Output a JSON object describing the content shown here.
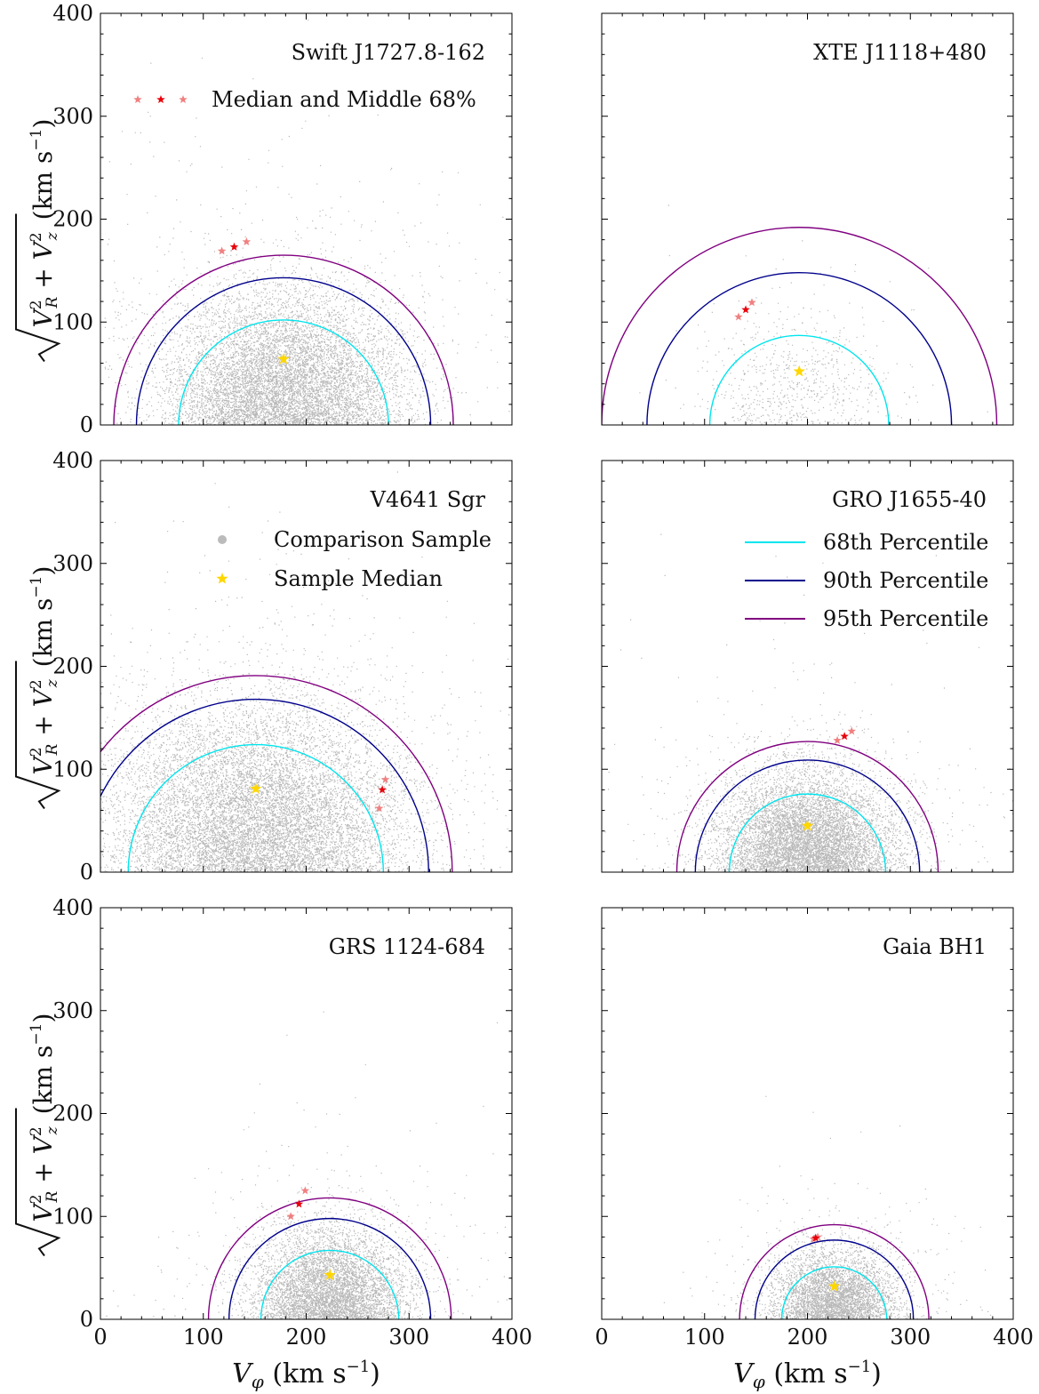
{
  "figure": {
    "xlabel_main": "V",
    "xlabel_sub": "φ",
    "xlabel_unit": " (km s",
    "xlabel_exp": "−1",
    "xlabel_close": ")",
    "ylabel_text": "V²R + V²z (km s⁻¹)",
    "ylabel_unit": "(km s",
    "ylabel_exp": "−1",
    "ylabel_close": ")"
  },
  "legend_stars": {
    "label": "Median and Middle 68%",
    "color": "#e8000b",
    "faint_color": "#f08080"
  },
  "legend_sample": {
    "comparison": "Comparison Sample",
    "median": "Sample Median",
    "comparison_color": "#bbbbbb",
    "median_color": "#ffd700"
  },
  "legend_lines": [
    {
      "label": "68th Percentile",
      "color": "#00e5ee"
    },
    {
      "label": "90th Percentile",
      "color": "#00008b"
    },
    {
      "label": "95th Percentile",
      "color": "#800080"
    }
  ],
  "chart_data": [
    {
      "type": "scatter",
      "title": "Swift J1727.8-162",
      "xlim": [
        0,
        400
      ],
      "ylim": [
        0,
        400
      ],
      "xticks": [
        0,
        100,
        200,
        300,
        400
      ],
      "yticks": [
        0,
        100,
        200,
        300,
        400
      ],
      "sample_median": [
        178,
        64
      ],
      "percentile_radii": {
        "p68": 102,
        "p90": 143,
        "p95": 165
      },
      "object_median": [
        130,
        173
      ],
      "object_range": [
        [
          118,
          169
        ],
        [
          142,
          178
        ]
      ],
      "cloud_sigma": [
        58,
        50
      ],
      "cloud_points": 9000
    },
    {
      "type": "scatter",
      "title": "XTE J1118+480",
      "xlim": [
        0,
        400
      ],
      "ylim": [
        0,
        400
      ],
      "xticks": [
        0,
        100,
        200,
        300,
        400
      ],
      "yticks": [
        0,
        100,
        200,
        300,
        400
      ],
      "sample_median": [
        192,
        52
      ],
      "percentile_radii": {
        "p68": 87,
        "p90": 148,
        "p95": 192
      },
      "object_median": [
        140,
        112
      ],
      "object_range": [
        [
          133,
          105
        ],
        [
          146,
          119
        ]
      ],
      "cloud_sigma": [
        45,
        42
      ],
      "cloud_points": 700
    },
    {
      "type": "scatter",
      "title": "V4641 Sgr",
      "xlim": [
        0,
        400
      ],
      "ylim": [
        0,
        400
      ],
      "xticks": [
        0,
        100,
        200,
        300,
        400
      ],
      "yticks": [
        0,
        100,
        200,
        300,
        400
      ],
      "sample_median": [
        151,
        81
      ],
      "percentile_radii": {
        "p68": 124,
        "p90": 168,
        "p95": 191
      },
      "object_median": [
        274,
        80
      ],
      "object_range": [
        [
          271,
          62
        ],
        [
          277,
          90
        ]
      ],
      "cloud_sigma": [
        72,
        62
      ],
      "cloud_points": 11000
    },
    {
      "type": "scatter",
      "title": "GRO J1655-40",
      "xlim": [
        0,
        400
      ],
      "ylim": [
        0,
        400
      ],
      "xticks": [
        0,
        100,
        200,
        300,
        400
      ],
      "yticks": [
        0,
        100,
        200,
        300,
        400
      ],
      "sample_median": [
        200,
        45
      ],
      "percentile_radii": {
        "p68": 76,
        "p90": 109,
        "p95": 127
      },
      "object_median": [
        236,
        132
      ],
      "object_range": [
        [
          229,
          128
        ],
        [
          243,
          137
        ]
      ],
      "cloud_sigma": [
        44,
        38
      ],
      "cloud_points": 8000
    },
    {
      "type": "scatter",
      "title": "GRS 1124-684",
      "xlim": [
        0,
        400
      ],
      "ylim": [
        0,
        400
      ],
      "xticks": [
        0,
        100,
        200,
        300,
        400
      ],
      "yticks": [
        0,
        100,
        200,
        300,
        400
      ],
      "sample_median": [
        223,
        43
      ],
      "percentile_radii": {
        "p68": 67,
        "p90": 98,
        "p95": 118
      },
      "object_median": [
        193,
        112
      ],
      "object_range": [
        [
          185,
          100
        ],
        [
          199,
          125
        ]
      ],
      "cloud_sigma": [
        38,
        34
      ],
      "cloud_points": 6000
    },
    {
      "type": "scatter",
      "title": "Gaia BH1",
      "xlim": [
        0,
        400
      ],
      "ylim": [
        0,
        400
      ],
      "xticks": [
        0,
        100,
        200,
        300,
        400
      ],
      "yticks": [
        0,
        100,
        200,
        300,
        400
      ],
      "sample_median": [
        226,
        32
      ],
      "percentile_radii": {
        "p68": 51,
        "p90": 77,
        "p95": 92
      },
      "object_median": [
        208,
        79
      ],
      "object_range": [
        [
          206,
          78
        ],
        [
          210,
          80
        ]
      ],
      "cloud_sigma": [
        30,
        26
      ],
      "cloud_points": 4500
    }
  ]
}
